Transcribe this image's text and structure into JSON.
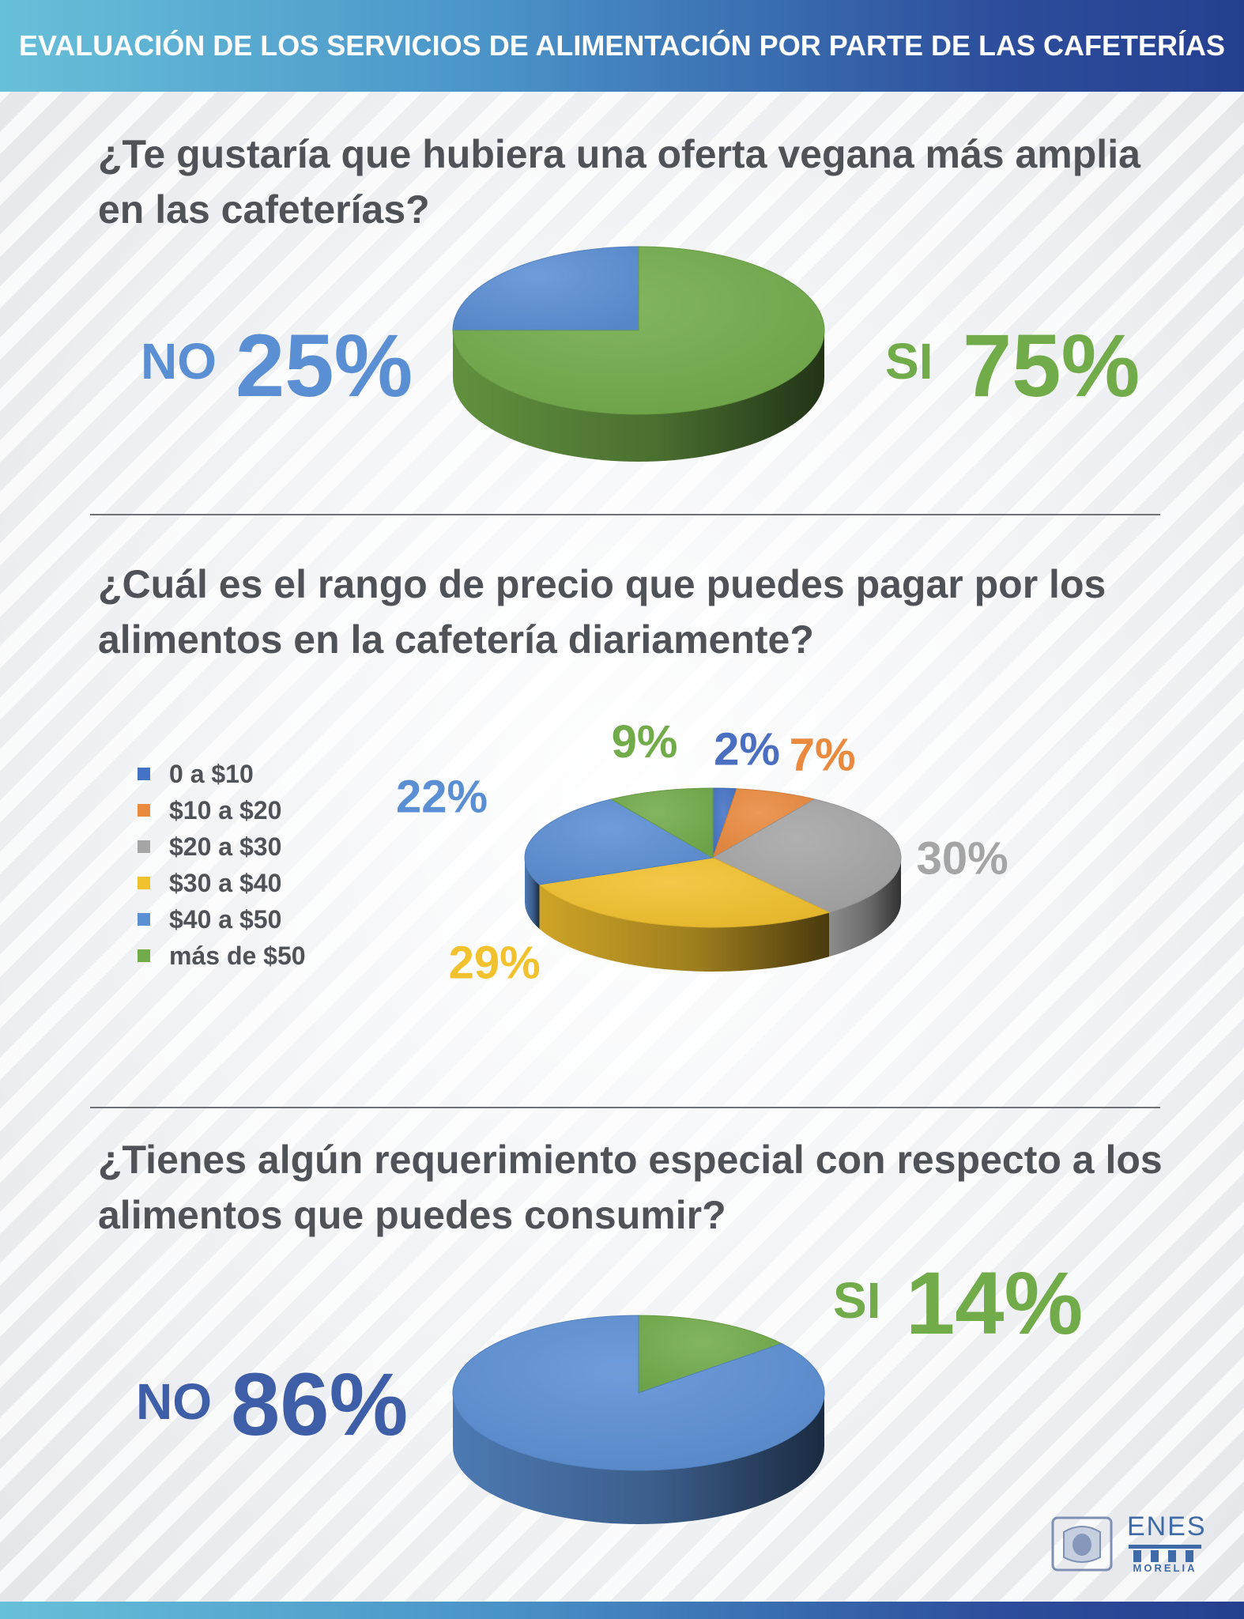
{
  "header": {
    "title": "EVALUACIÓN DE LOS SERVICIOS DE ALIMENTACIÓN POR PARTE DE LAS CAFETERÍAS"
  },
  "colors": {
    "blue": "#5b8fd4",
    "green": "#72ab4a",
    "orange": "#e98a3f",
    "gray": "#a5a5a5",
    "yellow": "#f2c12e",
    "darkblue": "#3f5ea8",
    "question_text": "#4f5358"
  },
  "q1": {
    "question_line1": "¿Te gustaría que hubiera una oferta vegana más amplia",
    "question_line2": "en las cafeterías?",
    "no_word": "NO",
    "no_value": "25%",
    "si_word": "SI",
    "si_value": "75%"
  },
  "q2": {
    "question_line1": "¿Cuál es el rango de precio que puedes pagar por los",
    "question_line2": "alimentos en la cafetería diariamente?"
  },
  "q3": {
    "question_line1": "¿Tienes algún requerimiento especial con respecto a los",
    "question_line2": "alimentos que puedes consumir?",
    "no_word": "NO",
    "no_value": "86%",
    "si_word": "SI",
    "si_value": "14%"
  },
  "chart_data": [
    {
      "type": "pie",
      "title": "¿Te gustaría que hubiera una oferta vegana más amplia en las cafeterías?",
      "categories": [
        "NO",
        "SI"
      ],
      "values": [
        25,
        75
      ],
      "colors": [
        "#5b8fd4",
        "#72ab4a"
      ],
      "style": "3d"
    },
    {
      "type": "pie",
      "title": "¿Cuál es el rango de precio que puedes pagar por los alimentos en la cafetería diariamente?",
      "categories": [
        "0 a $10",
        "$10 a $20",
        "$20 a $30",
        "$30 a $40",
        "$40 a $50",
        "más de $50"
      ],
      "values": [
        2,
        7,
        30,
        29,
        22,
        9
      ],
      "labels": [
        "2%",
        "7%",
        "30%",
        "29%",
        "22%",
        "9%"
      ],
      "colors": [
        "#4472c4",
        "#e98a3f",
        "#a5a5a5",
        "#f2c12e",
        "#5b8fd4",
        "#72ab4a"
      ],
      "label_colors": [
        "#4a6fc0",
        "#e98a3f",
        "#a5a5a5",
        "#f2c12e",
        "#5b8fd4",
        "#72ab4a"
      ],
      "legend": "left",
      "style": "3d"
    },
    {
      "type": "pie",
      "title": "¿Tienes algún requerimiento especial con respecto a los alimentos que puedes consumir?",
      "categories": [
        "NO",
        "SI"
      ],
      "values": [
        86,
        14
      ],
      "colors": [
        "#5b8fd4",
        "#72ab4a"
      ],
      "style": "3d"
    }
  ],
  "logo": {
    "enes": "ENES",
    "morelia": "MORELIA"
  }
}
